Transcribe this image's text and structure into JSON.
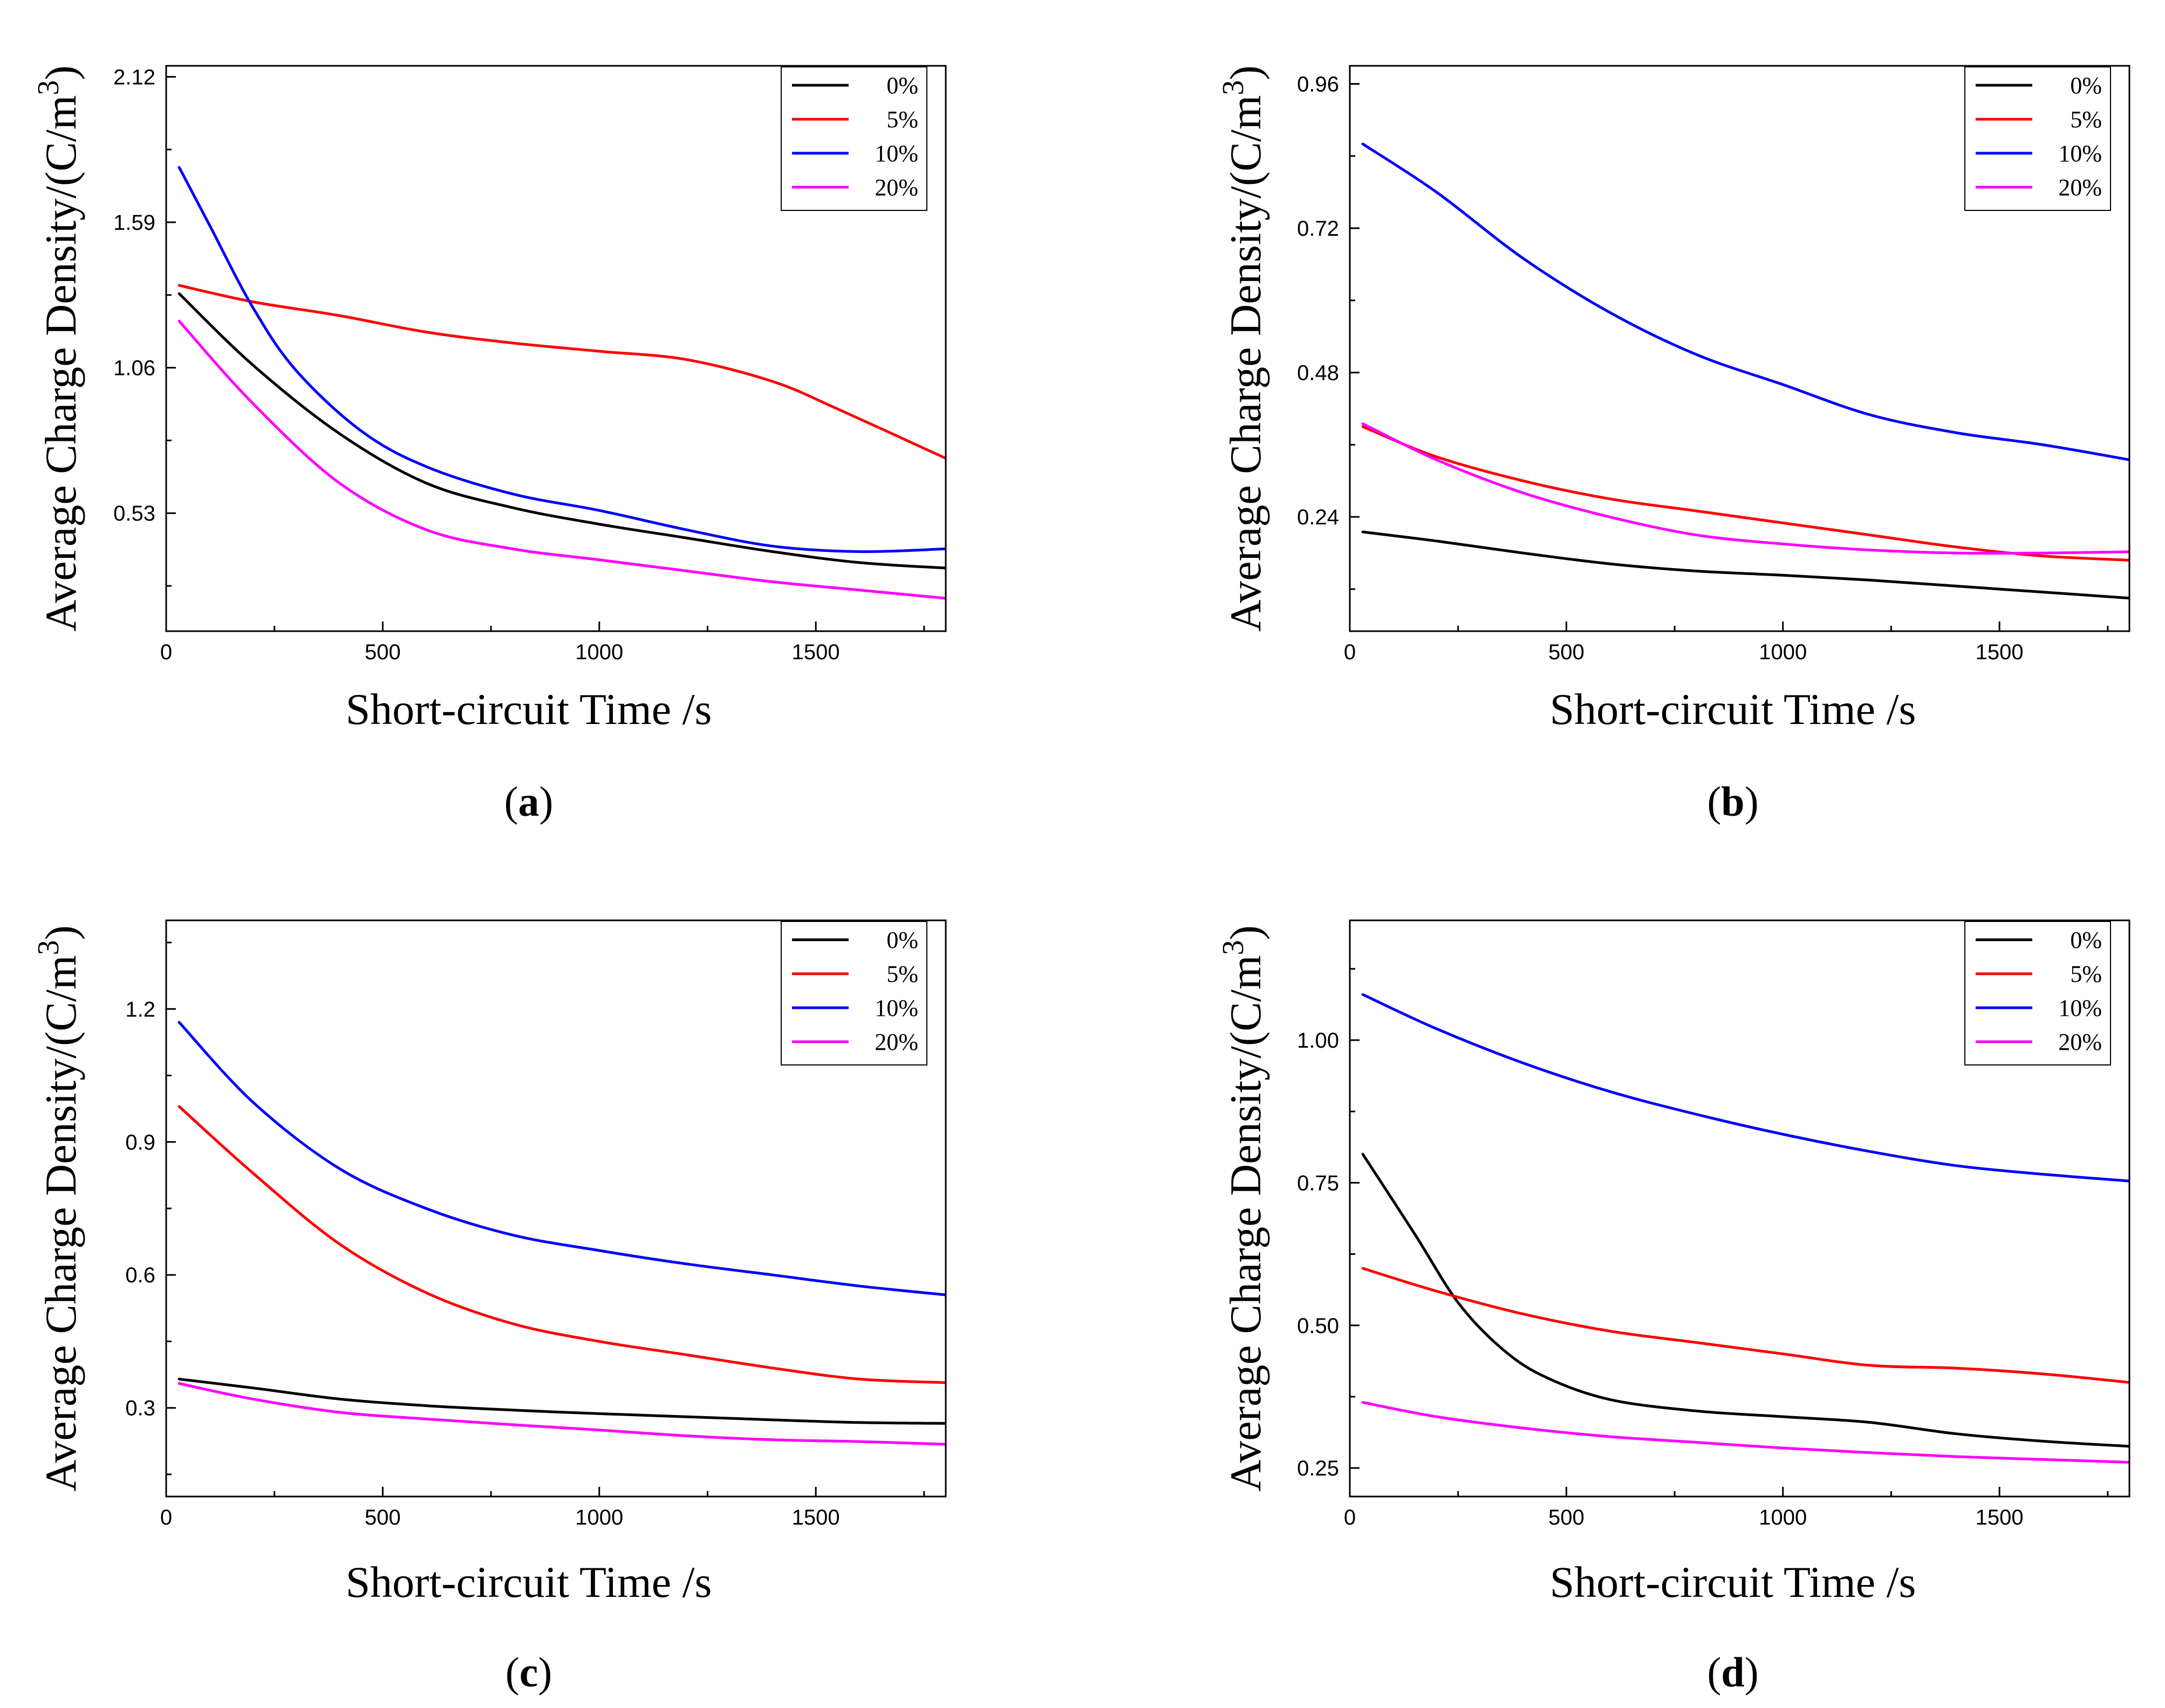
{
  "chart_data": [
    {
      "type": "line",
      "panel_label": "(a)",
      "panel_letter": "a",
      "xlabel": "Short-circuit Time /s",
      "ylabel": "Average Charge Density/(C/m",
      "ylabel_superscript": "3",
      "ylabel_close": ")",
      "xlim": [
        0,
        1800
      ],
      "ylim": [
        0.1,
        2.16
      ],
      "xticks": [
        0,
        500,
        1000,
        1500
      ],
      "xtick_labels": [
        "0",
        "500",
        "1000",
        "1500"
      ],
      "yticks": [
        0.53,
        1.06,
        1.59,
        2.12
      ],
      "ytick_labels": [
        "0.53",
        "1.06",
        "1.59",
        "2.12"
      ],
      "legend_position": "top-right",
      "series": [
        {
          "name": "0%",
          "color": "#000000",
          "points": [
            [
              30,
              1.33
            ],
            [
              200,
              1.07
            ],
            [
              400,
              0.82
            ],
            [
              600,
              0.64
            ],
            [
              800,
              0.55
            ],
            [
              1000,
              0.49
            ],
            [
              1200,
              0.44
            ],
            [
              1400,
              0.39
            ],
            [
              1600,
              0.35
            ],
            [
              1800,
              0.33
            ]
          ]
        },
        {
          "name": "5%",
          "color": "#ff0000",
          "points": [
            [
              30,
              1.36
            ],
            [
              200,
              1.3
            ],
            [
              400,
              1.25
            ],
            [
              600,
              1.19
            ],
            [
              800,
              1.15
            ],
            [
              1000,
              1.12
            ],
            [
              1200,
              1.09
            ],
            [
              1400,
              1.01
            ],
            [
              1550,
              0.91
            ],
            [
              1800,
              0.73
            ]
          ]
        },
        {
          "name": "10%",
          "color": "#0000ff",
          "points": [
            [
              30,
              1.79
            ],
            [
              100,
              1.58
            ],
            [
              200,
              1.28
            ],
            [
              300,
              1.05
            ],
            [
              450,
              0.83
            ],
            [
              600,
              0.7
            ],
            [
              800,
              0.6
            ],
            [
              1000,
              0.54
            ],
            [
              1200,
              0.47
            ],
            [
              1400,
              0.41
            ],
            [
              1600,
              0.39
            ],
            [
              1800,
              0.4
            ]
          ]
        },
        {
          "name": "20%",
          "color": "#ff00ff",
          "points": [
            [
              30,
              1.23
            ],
            [
              200,
              0.93
            ],
            [
              400,
              0.64
            ],
            [
              600,
              0.47
            ],
            [
              800,
              0.4
            ],
            [
              1000,
              0.36
            ],
            [
              1200,
              0.32
            ],
            [
              1400,
              0.28
            ],
            [
              1600,
              0.25
            ],
            [
              1800,
              0.22
            ]
          ]
        }
      ]
    },
    {
      "type": "line",
      "panel_label": "(b)",
      "panel_letter": "b",
      "xlabel": "Short-circuit Time /s",
      "ylabel": "Average Charge Density/(C/m",
      "ylabel_superscript": "3",
      "ylabel_close": ")",
      "xlim": [
        0,
        1800
      ],
      "ylim": [
        0.05,
        0.99
      ],
      "xticks": [
        0,
        500,
        1000,
        1500
      ],
      "xtick_labels": [
        "0",
        "500",
        "1000",
        "1500"
      ],
      "yticks": [
        0.24,
        0.48,
        0.72,
        0.96
      ],
      "ytick_labels": [
        "0.24",
        "0.48",
        "0.72",
        "0.96"
      ],
      "legend_position": "top-right",
      "series": [
        {
          "name": "0%",
          "color": "#000000",
          "points": [
            [
              30,
              0.215
            ],
            [
              200,
              0.2
            ],
            [
              400,
              0.18
            ],
            [
              600,
              0.162
            ],
            [
              800,
              0.15
            ],
            [
              1000,
              0.143
            ],
            [
              1200,
              0.135
            ],
            [
              1400,
              0.125
            ],
            [
              1600,
              0.115
            ],
            [
              1800,
              0.105
            ]
          ]
        },
        {
          "name": "5%",
          "color": "#ff0000",
          "points": [
            [
              30,
              0.39
            ],
            [
              200,
              0.34
            ],
            [
              400,
              0.3
            ],
            [
              600,
              0.27
            ],
            [
              800,
              0.25
            ],
            [
              1000,
              0.23
            ],
            [
              1200,
              0.21
            ],
            [
              1400,
              0.19
            ],
            [
              1600,
              0.175
            ],
            [
              1800,
              0.168
            ]
          ]
        },
        {
          "name": "10%",
          "color": "#0000ff",
          "points": [
            [
              30,
              0.86
            ],
            [
              200,
              0.78
            ],
            [
              400,
              0.67
            ],
            [
              600,
              0.58
            ],
            [
              800,
              0.51
            ],
            [
              1000,
              0.46
            ],
            [
              1200,
              0.41
            ],
            [
              1400,
              0.38
            ],
            [
              1600,
              0.36
            ],
            [
              1800,
              0.335
            ]
          ]
        },
        {
          "name": "20%",
          "color": "#ff00ff",
          "points": [
            [
              30,
              0.395
            ],
            [
              200,
              0.335
            ],
            [
              400,
              0.28
            ],
            [
              600,
              0.24
            ],
            [
              800,
              0.21
            ],
            [
              1000,
              0.195
            ],
            [
              1200,
              0.185
            ],
            [
              1400,
              0.18
            ],
            [
              1600,
              0.18
            ],
            [
              1800,
              0.182
            ]
          ]
        }
      ]
    },
    {
      "type": "line",
      "panel_label": "(c)",
      "panel_letter": "c",
      "xlabel": "Short-circuit Time /s",
      "ylabel": "Average Charge Density/(C/m",
      "ylabel_superscript": "3",
      "ylabel_close": ")",
      "xlim": [
        0,
        1800
      ],
      "ylim": [
        0.1,
        1.4
      ],
      "xticks": [
        0,
        500,
        1000,
        1500
      ],
      "xtick_labels": [
        "0",
        "500",
        "1000",
        "1500"
      ],
      "yticks": [
        0.3,
        0.6,
        0.9,
        1.2
      ],
      "ytick_labels": [
        "0.3",
        "0.6",
        "0.9",
        "1.2"
      ],
      "legend_position": "top-right",
      "series": [
        {
          "name": "0%",
          "color": "#000000",
          "points": [
            [
              30,
              0.365
            ],
            [
              200,
              0.345
            ],
            [
              400,
              0.32
            ],
            [
              600,
              0.305
            ],
            [
              800,
              0.295
            ],
            [
              1000,
              0.287
            ],
            [
              1200,
              0.28
            ],
            [
              1400,
              0.273
            ],
            [
              1600,
              0.267
            ],
            [
              1800,
              0.265
            ]
          ]
        },
        {
          "name": "5%",
          "color": "#ff0000",
          "points": [
            [
              30,
              0.98
            ],
            [
              200,
              0.83
            ],
            [
              400,
              0.67
            ],
            [
              600,
              0.56
            ],
            [
              800,
              0.49
            ],
            [
              1000,
              0.45
            ],
            [
              1200,
              0.42
            ],
            [
              1400,
              0.39
            ],
            [
              1600,
              0.365
            ],
            [
              1800,
              0.357
            ]
          ]
        },
        {
          "name": "10%",
          "color": "#0000ff",
          "points": [
            [
              30,
              1.17
            ],
            [
              200,
              0.99
            ],
            [
              400,
              0.84
            ],
            [
              600,
              0.75
            ],
            [
              800,
              0.69
            ],
            [
              1000,
              0.655
            ],
            [
              1200,
              0.625
            ],
            [
              1400,
              0.6
            ],
            [
              1600,
              0.575
            ],
            [
              1800,
              0.555
            ]
          ]
        },
        {
          "name": "20%",
          "color": "#ff00ff",
          "points": [
            [
              30,
              0.355
            ],
            [
              200,
              0.32
            ],
            [
              400,
              0.29
            ],
            [
              600,
              0.275
            ],
            [
              800,
              0.262
            ],
            [
              1000,
              0.25
            ],
            [
              1200,
              0.237
            ],
            [
              1400,
              0.228
            ],
            [
              1600,
              0.224
            ],
            [
              1800,
              0.218
            ]
          ]
        }
      ]
    },
    {
      "type": "line",
      "panel_label": "(d)",
      "panel_letter": "d",
      "xlabel": "Short-circuit Time /s",
      "ylabel": "Average Charge Density/(C/m",
      "ylabel_superscript": "3",
      "ylabel_close": ")",
      "xlim": [
        0,
        1800
      ],
      "ylim": [
        0.2,
        1.21
      ],
      "xticks": [
        0,
        500,
        1000,
        1500
      ],
      "xtick_labels": [
        "0",
        "500",
        "1000",
        "1500"
      ],
      "yticks": [
        0.25,
        0.5,
        0.75,
        1.0
      ],
      "ytick_labels": [
        "0.25",
        "0.50",
        "0.75",
        "1.00"
      ],
      "legend_position": "top-right",
      "series": [
        {
          "name": "0%",
          "color": "#000000",
          "points": [
            [
              30,
              0.8
            ],
            [
              150,
              0.66
            ],
            [
              250,
              0.54
            ],
            [
              350,
              0.46
            ],
            [
              450,
              0.41
            ],
            [
              600,
              0.37
            ],
            [
              800,
              0.35
            ],
            [
              1000,
              0.34
            ],
            [
              1200,
              0.33
            ],
            [
              1400,
              0.31
            ],
            [
              1600,
              0.297
            ],
            [
              1800,
              0.288
            ]
          ]
        },
        {
          "name": "5%",
          "color": "#ff0000",
          "points": [
            [
              30,
              0.6
            ],
            [
              200,
              0.56
            ],
            [
              400,
              0.52
            ],
            [
              600,
              0.49
            ],
            [
              800,
              0.47
            ],
            [
              1000,
              0.45
            ],
            [
              1200,
              0.43
            ],
            [
              1400,
              0.425
            ],
            [
              1600,
              0.415
            ],
            [
              1800,
              0.4
            ]
          ]
        },
        {
          "name": "10%",
          "color": "#0000ff",
          "points": [
            [
              30,
              1.08
            ],
            [
              200,
              1.02
            ],
            [
              400,
              0.96
            ],
            [
              600,
              0.91
            ],
            [
              800,
              0.87
            ],
            [
              1000,
              0.835
            ],
            [
              1200,
              0.805
            ],
            [
              1400,
              0.78
            ],
            [
              1600,
              0.765
            ],
            [
              1800,
              0.753
            ]
          ]
        },
        {
          "name": "20%",
          "color": "#ff00ff",
          "points": [
            [
              30,
              0.365
            ],
            [
              200,
              0.34
            ],
            [
              400,
              0.32
            ],
            [
              600,
              0.305
            ],
            [
              800,
              0.295
            ],
            [
              1000,
              0.285
            ],
            [
              1200,
              0.277
            ],
            [
              1400,
              0.27
            ],
            [
              1600,
              0.265
            ],
            [
              1800,
              0.26
            ]
          ]
        }
      ]
    }
  ]
}
